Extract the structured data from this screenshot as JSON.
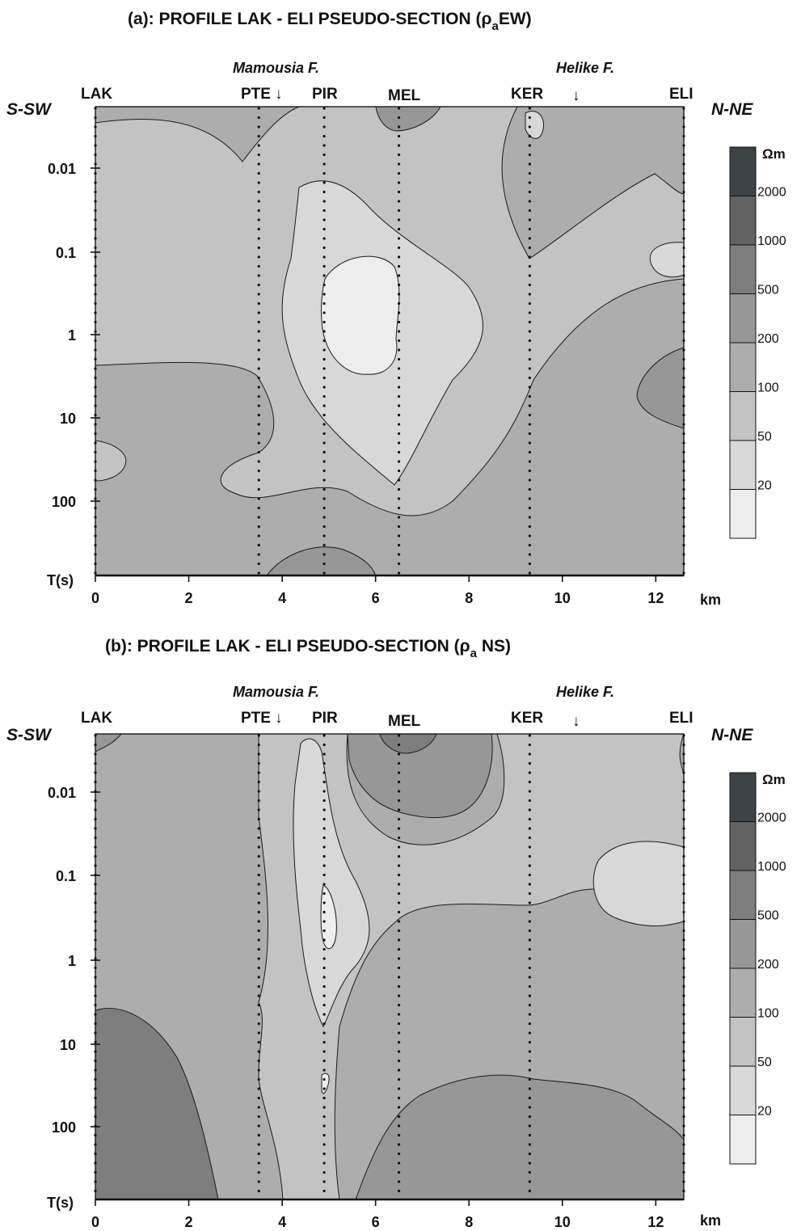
{
  "colors": {
    "levels": [
      "#ededed",
      "#d8d8d8",
      "#c3c3c3",
      "#adadad",
      "#979797",
      "#7e7e7e",
      "#626262",
      "#3e4446"
    ],
    "line": "#1a1a1a",
    "text": "#111111"
  },
  "panels": [
    {
      "title_main": "(a):  PROFILE  LAK - ELI      PSEUDO-SECTION (",
      "title_rho": "ρ",
      "title_sub": "a",
      "title_tail": "EW)",
      "left_dir": "S-SW",
      "right_dir": "N-NE",
      "fault_left": "Mamousia F.",
      "fault_right": "Helike F.",
      "arrow": "↓"
    },
    {
      "title_main": "(b):  PROFILE  LAK - ELI      PSEUDO-SECTION  (",
      "title_rho": "ρ",
      "title_sub": "a",
      "title_tail": " NS)",
      "left_dir": "S-SW",
      "right_dir": "N-NE",
      "fault_left": "Mamousia F.",
      "fault_right": "Helike F.",
      "arrow": "↓"
    }
  ],
  "chart_data": [
    {
      "type": "heatmap",
      "subtype": "contour pseudo-section",
      "title": "(a): PROFILE LAK - ELI PSEUDO-SECTION (ρa EW)",
      "xlabel": "km",
      "ylabel": "T(s)",
      "x_ticks": [
        0,
        2,
        4,
        6,
        8,
        10,
        12
      ],
      "xlim": [
        0,
        12.6
      ],
      "y_ticks": [
        "0.01",
        "0.1",
        "1",
        "10",
        "100"
      ],
      "y_scale": "log",
      "stations": [
        {
          "name": "LAK",
          "x": 0
        },
        {
          "name": "PTE",
          "x": 3.5
        },
        {
          "name": "PIR",
          "x": 4.9
        },
        {
          "name": "MEL",
          "x": 6.5
        },
        {
          "name": "KER",
          "x": 9.3
        },
        {
          "name": "ELI",
          "x": 12.6
        }
      ],
      "faults": [
        {
          "name": "Mamousia F.",
          "x": 4.0
        },
        {
          "name": "Helike F.",
          "x": 10.4
        }
      ],
      "legend_unit": "Ωm",
      "legend_levels": [
        "2000",
        "1000",
        "500",
        "200",
        "100",
        "50",
        "20"
      ]
    },
    {
      "type": "heatmap",
      "subtype": "contour pseudo-section",
      "title": "(b): PROFILE LAK - ELI PSEUDO-SECTION (ρa NS)",
      "xlabel": "km",
      "ylabel": "T(s)",
      "x_ticks": [
        0,
        2,
        4,
        6,
        8,
        10,
        12
      ],
      "xlim": [
        0,
        12.6
      ],
      "y_ticks": [
        "0.01",
        "0.1",
        "1",
        "10",
        "100"
      ],
      "y_scale": "log",
      "stations": [
        {
          "name": "LAK",
          "x": 0
        },
        {
          "name": "PTE",
          "x": 3.5
        },
        {
          "name": "PIR",
          "x": 4.9
        },
        {
          "name": "MEL",
          "x": 6.5
        },
        {
          "name": "KER",
          "x": 9.3
        },
        {
          "name": "ELI",
          "x": 12.6
        }
      ],
      "faults": [
        {
          "name": "Mamousia F.",
          "x": 4.0
        },
        {
          "name": "Helike F.",
          "x": 10.4
        }
      ],
      "legend_unit": "Ωm",
      "legend_levels": [
        "2000",
        "1000",
        "500",
        "200",
        "100",
        "50",
        "20"
      ]
    }
  ]
}
